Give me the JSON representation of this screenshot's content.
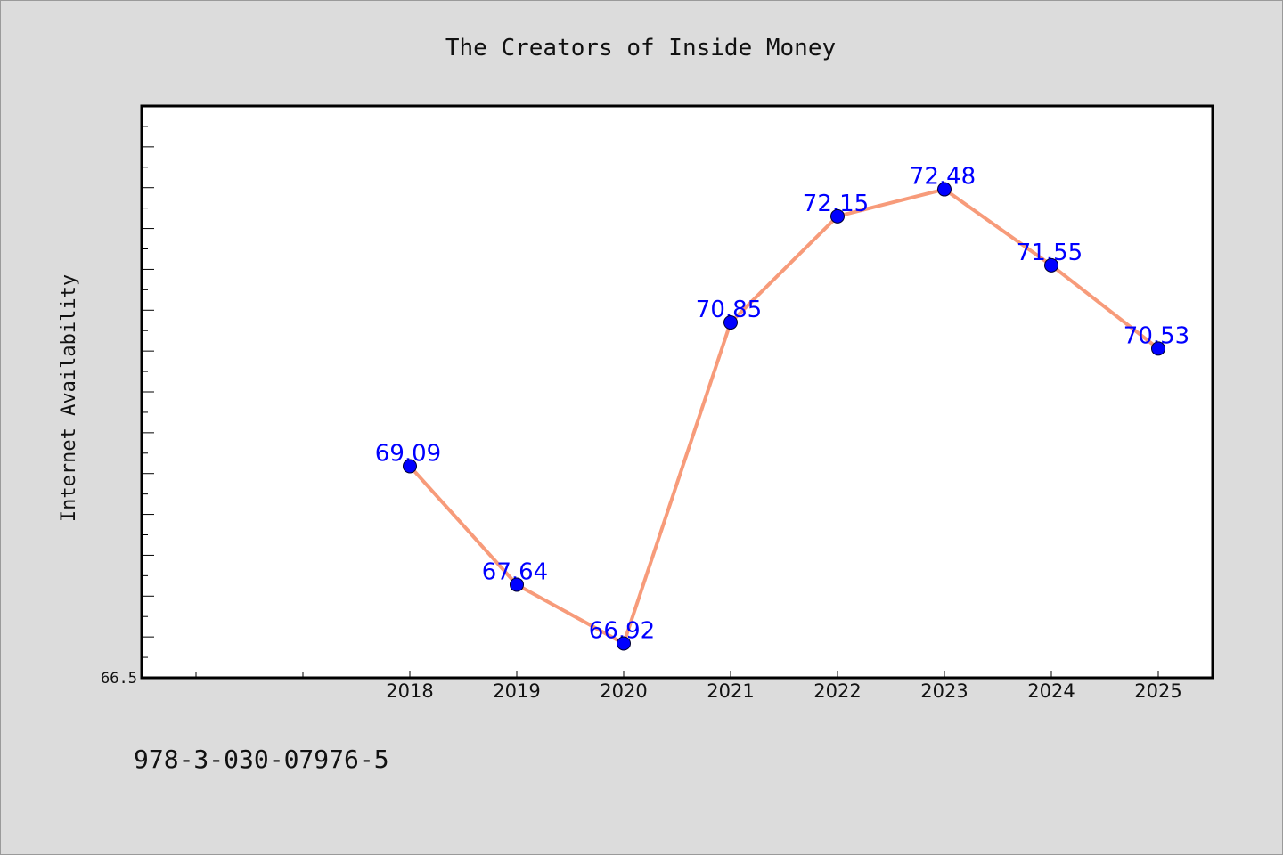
{
  "chart_data": {
    "type": "line",
    "title": "The Creators of Inside Money",
    "xlabel": "",
    "ylabel": "Internet Availability",
    "categories": [
      "2018",
      "2019",
      "2020",
      "2021",
      "2022",
      "2023",
      "2024",
      "2025"
    ],
    "series": [
      {
        "values": [
          69.09,
          67.64,
          66.92,
          70.85,
          72.15,
          72.48,
          71.55,
          70.53
        ]
      }
    ],
    "data_labels": [
      "69.09",
      "67.64",
      "66.92",
      "70.85",
      "72.15",
      "72.48",
      "71.55",
      "70.53"
    ],
    "ytick_labels": [
      "66.5"
    ],
    "ylim": [
      66.5,
      73.5
    ],
    "grid": false,
    "line_color": "#f79b7a",
    "marker_color": "#0000ff",
    "label_color": "#0000ff",
    "background_color": "#dcdcdc",
    "plot_background": "#ffffff"
  },
  "footer": {
    "isbn": "978-3-030-07976-5"
  }
}
